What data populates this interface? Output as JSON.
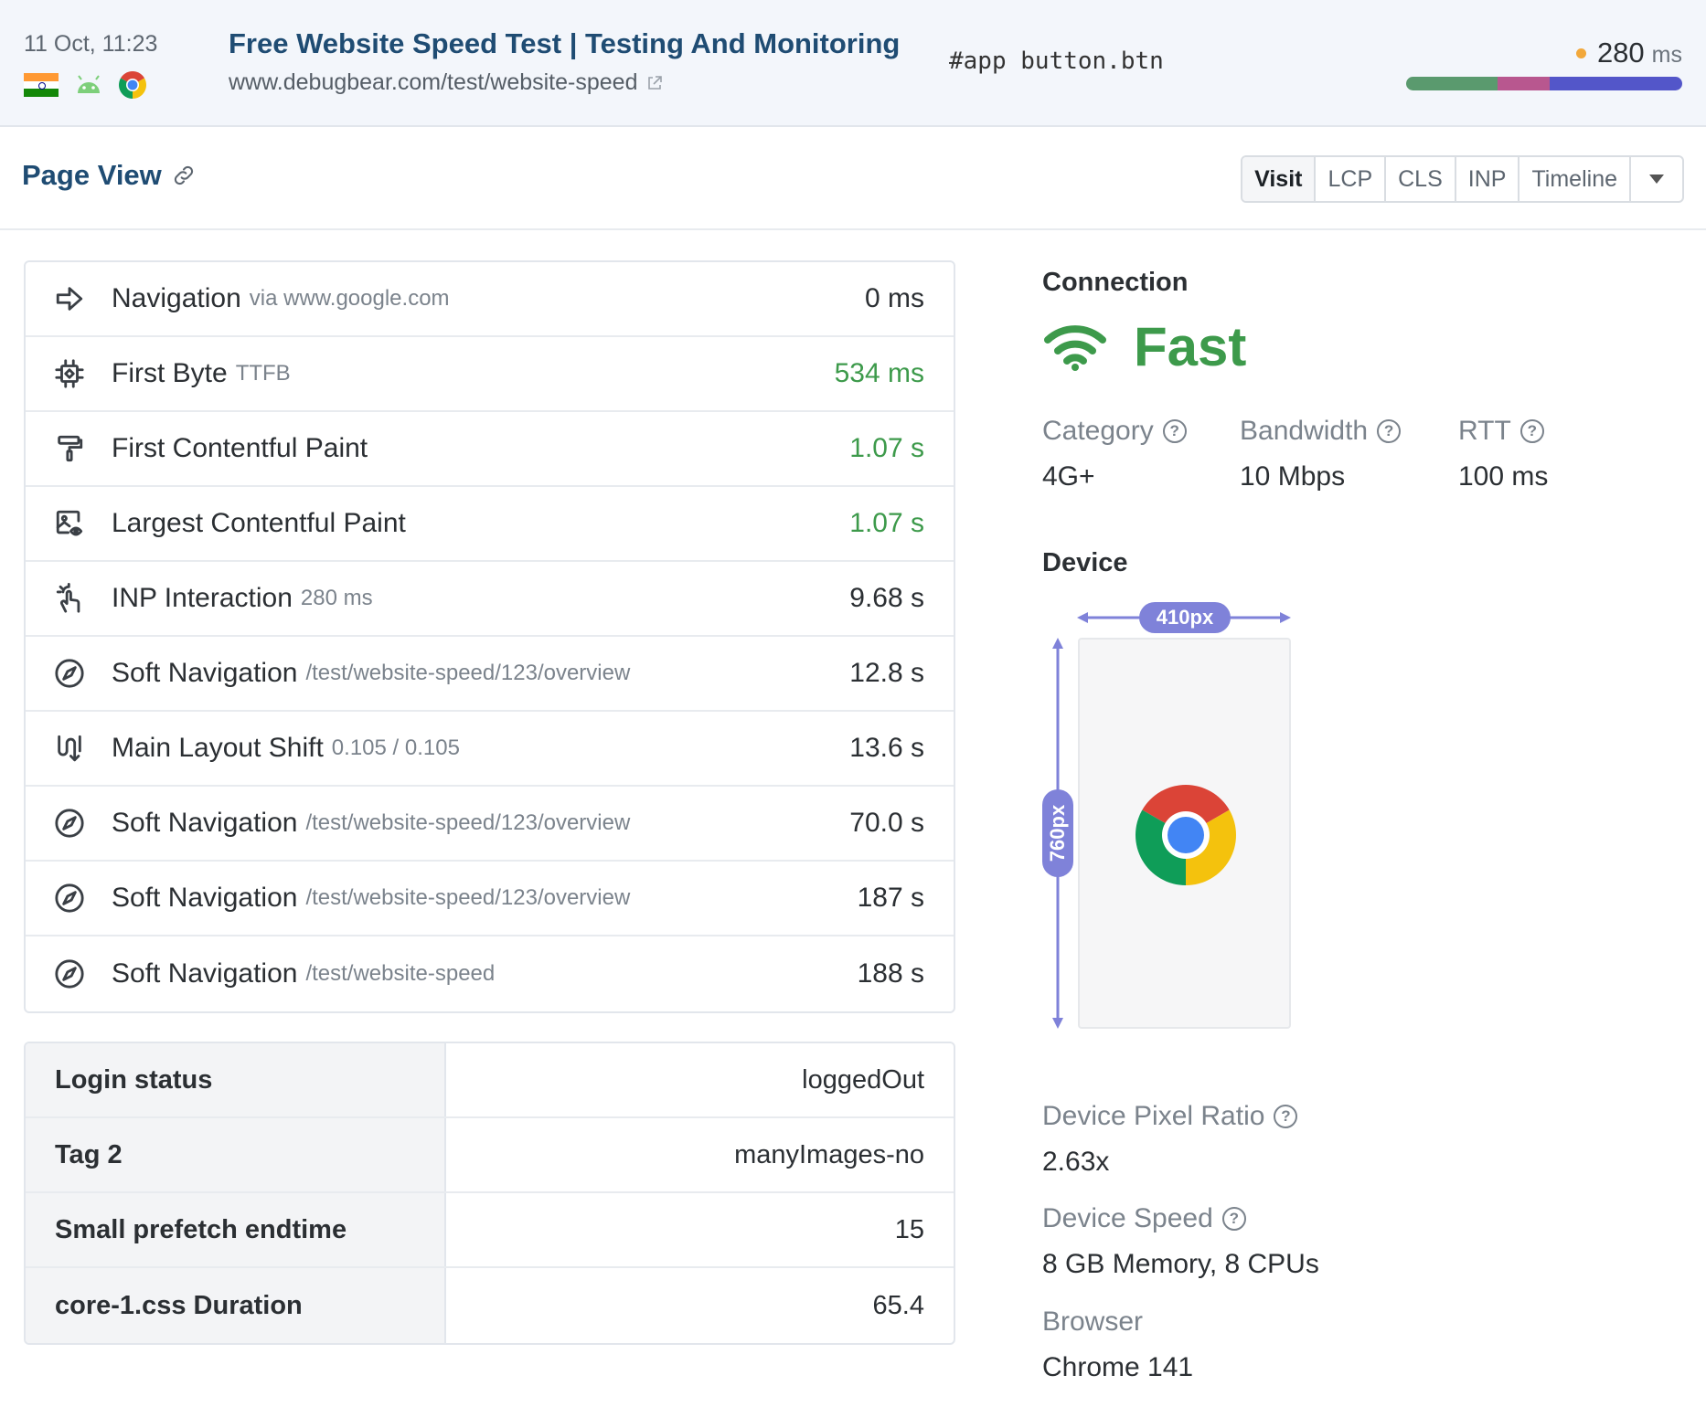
{
  "header": {
    "date": "11 Oct, 11:23",
    "title": "Free Website Speed Test | Testing And Monitoring",
    "url": "www.debugbear.com/test/website-speed",
    "selector": "#app button.btn",
    "metric_value": "280",
    "metric_unit": "ms",
    "bar_segments": [
      {
        "color": "#5a9a6e",
        "fraction": 0.33
      },
      {
        "color": "#b8578f",
        "fraction": 0.19
      },
      {
        "color": "#5356c9",
        "fraction": 0.48
      }
    ],
    "icons": [
      "india-flag-icon",
      "android-icon",
      "chrome-icon"
    ]
  },
  "page_view": {
    "title": "Page View",
    "tabs": [
      "Visit",
      "LCP",
      "CLS",
      "INP",
      "Timeline"
    ],
    "active_tab": "Visit"
  },
  "events": [
    {
      "icon": "navigation-arrow-icon",
      "label": "Navigation",
      "sub": "via www.google.com",
      "time": "0 ms",
      "good": false
    },
    {
      "icon": "chip-icon",
      "label": "First Byte",
      "sub": "TTFB",
      "time": "534 ms",
      "good": true
    },
    {
      "icon": "paint-roller-icon",
      "label": "First Contentful Paint",
      "sub": "",
      "time": "1.07 s",
      "good": true
    },
    {
      "icon": "image-eye-icon",
      "label": "Largest Contentful Paint",
      "sub": "",
      "time": "1.07 s",
      "good": true
    },
    {
      "icon": "tap-hand-icon",
      "label": "INP Interaction",
      "sub": "280 ms",
      "time": "9.68 s",
      "good": false
    },
    {
      "icon": "compass-icon",
      "label": "Soft Navigation",
      "sub": "/test/website-speed/123/overview",
      "time": "12.8 s",
      "good": false
    },
    {
      "icon": "layout-shift-icon",
      "label": "Main Layout Shift",
      "sub": "0.105 / 0.105",
      "time": "13.6 s",
      "good": false
    },
    {
      "icon": "compass-icon",
      "label": "Soft Navigation",
      "sub": "/test/website-speed/123/overview",
      "time": "70.0 s",
      "good": false
    },
    {
      "icon": "compass-icon",
      "label": "Soft Navigation",
      "sub": "/test/website-speed/123/overview",
      "time": "187 s",
      "good": false
    },
    {
      "icon": "compass-icon",
      "label": "Soft Navigation",
      "sub": "/test/website-speed",
      "time": "188 s",
      "good": false
    }
  ],
  "tags": [
    {
      "key": "Login status",
      "value": "loggedOut"
    },
    {
      "key": "Tag 2",
      "value": "manyImages-no"
    },
    {
      "key": "Small prefetch endtime",
      "value": "15"
    },
    {
      "key": "core-1.css Duration",
      "value": "65.4"
    }
  ],
  "connection": {
    "title": "Connection",
    "speed": "Fast",
    "speed_color": "#3d9a4b",
    "category_label": "Category",
    "category_value": "4G+",
    "bandwidth_label": "Bandwidth",
    "bandwidth_value": "10 Mbps",
    "rtt_label": "RTT",
    "rtt_value": "100 ms"
  },
  "device": {
    "title": "Device",
    "width_label": "410px",
    "height_label": "760px",
    "dpr_label": "Device Pixel Ratio",
    "dpr_value": "2.63x",
    "speed_label": "Device Speed",
    "speed_value": "8 GB Memory, 8 CPUs",
    "browser_label": "Browser",
    "browser_value": "Chrome 141"
  }
}
